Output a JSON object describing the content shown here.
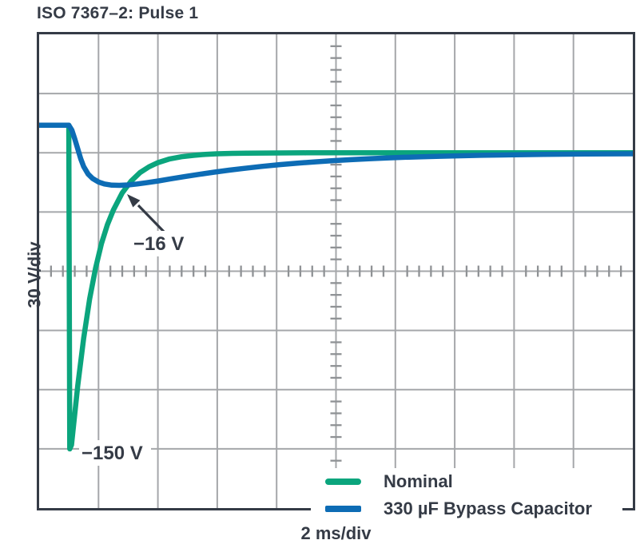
{
  "title": "ISO 7367–2: Pulse 1",
  "colors": {
    "text": "#353b46",
    "frame": "#353b46",
    "grid": "#a5a7aa",
    "ticks": "#8f9295",
    "background": "#ffffff",
    "nominal_green": "#0ba57d",
    "bypass_blue": "#0d6cb5"
  },
  "chart_data": {
    "type": "line",
    "title": "ISO 7367–2: Pulse 1",
    "xlabel": "2 ms/div",
    "ylabel": "30 V/div",
    "x_units": "ms",
    "y_units": "V",
    "x_per_div": 2,
    "y_per_div": 30,
    "divisions": {
      "x": 10,
      "y": 8
    },
    "xlim": [
      0,
      20
    ],
    "ylim": [
      -180,
      60
    ],
    "grid": "oscilloscope (major grid + minor ticks on center axes)",
    "legend_position": "inside bottom-right",
    "series": [
      {
        "name": "Nominal",
        "color": "#0ba57d",
        "points": [
          [
            0,
            14
          ],
          [
            1.0,
            14
          ],
          [
            1.03,
            -150
          ],
          [
            1.09,
            -148
          ],
          [
            1.3,
            -118
          ],
          [
            1.5,
            -94
          ],
          [
            1.7,
            -74
          ],
          [
            1.9,
            -58.5
          ],
          [
            2.1,
            -46
          ],
          [
            2.3,
            -36.5
          ],
          [
            2.5,
            -29
          ],
          [
            2.8,
            -20.3
          ],
          [
            3.1,
            -14.3
          ],
          [
            3.4,
            -10
          ],
          [
            3.7,
            -7.1
          ],
          [
            4.0,
            -5
          ],
          [
            4.4,
            -3.1
          ],
          [
            4.8,
            -2
          ],
          [
            5.2,
            -1.3
          ],
          [
            5.6,
            -0.8
          ],
          [
            6.0,
            -0.5
          ],
          [
            6.5,
            -0.3
          ],
          [
            7.0,
            -0.2
          ],
          [
            8.0,
            -0.1
          ],
          [
            9.0,
            0
          ],
          [
            20,
            0
          ]
        ]
      },
      {
        "name": "330 µF Bypass Capacitor",
        "color": "#0d6cb5",
        "points": [
          [
            0,
            14
          ],
          [
            1.0,
            14
          ],
          [
            1.1,
            11.5
          ],
          [
            1.2,
            7
          ],
          [
            1.3,
            2
          ],
          [
            1.4,
            -3
          ],
          [
            1.5,
            -7
          ],
          [
            1.65,
            -10.8
          ],
          [
            1.8,
            -13
          ],
          [
            2.0,
            -14.8
          ],
          [
            2.2,
            -15.8
          ],
          [
            2.45,
            -16.4
          ],
          [
            2.7,
            -16.5
          ],
          [
            3.0,
            -16.3
          ],
          [
            3.3,
            -15.8
          ],
          [
            3.6,
            -15.2
          ],
          [
            4.0,
            -14.3
          ],
          [
            4.4,
            -13.3
          ],
          [
            4.9,
            -12.1
          ],
          [
            5.4,
            -10.9
          ],
          [
            5.9,
            -9.8
          ],
          [
            6.4,
            -8.8
          ],
          [
            6.9,
            -7.9
          ],
          [
            7.5,
            -6.9
          ],
          [
            8.1,
            -6.0
          ],
          [
            8.7,
            -5.3
          ],
          [
            9.3,
            -4.6
          ],
          [
            9.9,
            -4.0
          ],
          [
            10.5,
            -3.5
          ],
          [
            11.1,
            -3.05
          ],
          [
            11.7,
            -2.65
          ],
          [
            12.3,
            -2.3
          ],
          [
            12.9,
            -2.0
          ],
          [
            13.5,
            -1.75
          ],
          [
            14.2,
            -1.5
          ],
          [
            14.9,
            -1.28
          ],
          [
            15.6,
            -1.1
          ],
          [
            16.3,
            -0.95
          ],
          [
            17.0,
            -0.82
          ],
          [
            17.7,
            -0.72
          ],
          [
            18.4,
            -0.64
          ],
          [
            19.2,
            -0.56
          ],
          [
            20,
            -0.5
          ]
        ]
      }
    ],
    "annotations": [
      {
        "text": "−16 V",
        "refers_to": "minimum of 330 µF Bypass Capacitor trace",
        "value_v": -16,
        "arrow": true
      },
      {
        "text": "−150 V",
        "refers_to": "minimum of Nominal trace",
        "value_v": -150,
        "arrow": false
      }
    ]
  },
  "legend": {
    "items": [
      {
        "label": "Nominal"
      },
      {
        "label": "330 µF Bypass Capacitor"
      }
    ]
  }
}
